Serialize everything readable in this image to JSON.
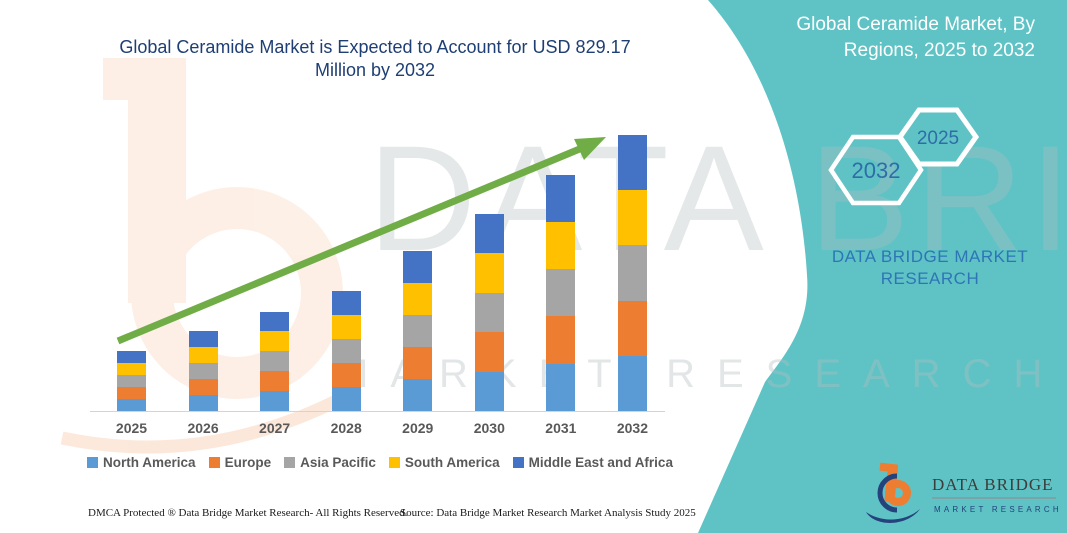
{
  "band": {
    "title": "Global Ceramide Market, By Regions, 2025 to 2032",
    "hexagons": [
      {
        "label": "2032"
      },
      {
        "label": "2025"
      }
    ],
    "brand_text": "DATA BRIDGE MARKET RESEARCH"
  },
  "chart_data": {
    "type": "bar",
    "stacked": true,
    "title": "Global Ceramide Market is Expected to Account for USD 829.17 Million by 2032",
    "xlabel": "",
    "ylabel": "",
    "unit": "USD Million",
    "categories": [
      "2025",
      "2026",
      "2027",
      "2028",
      "2029",
      "2030",
      "2031",
      "2032"
    ],
    "series": [
      {
        "name": "North America",
        "color": "#5B9BD5",
        "values": [
          35.8,
          47.8,
          59.8,
          72.0,
          96.0,
          118.4,
          142.0,
          165.8
        ]
      },
      {
        "name": "Europe",
        "color": "#ED7D31",
        "values": [
          35.8,
          47.8,
          59.8,
          72.0,
          96.0,
          118.4,
          142.0,
          165.8
        ]
      },
      {
        "name": "Asia Pacific",
        "color": "#A5A5A5",
        "values": [
          35.8,
          47.8,
          59.8,
          72.0,
          96.0,
          118.4,
          142.0,
          165.8
        ]
      },
      {
        "name": "South America",
        "color": "#FFC000",
        "values": [
          35.8,
          47.8,
          59.8,
          72.0,
          96.0,
          118.4,
          142.0,
          165.8
        ]
      },
      {
        "name": "Middle East and Africa",
        "color": "#4472C4",
        "values": [
          35.8,
          47.8,
          59.8,
          72.0,
          96.0,
          118.4,
          142.0,
          165.97
        ]
      }
    ],
    "totals": [
      179,
      239,
      299,
      360,
      480,
      592,
      710,
      829.17
    ],
    "ylim": [
      0,
      850
    ],
    "grid": false,
    "legend_position": "bottom",
    "trend_arrow": true,
    "values_are_estimates": true
  },
  "footer": {
    "dmca": "DMCA Protected ® Data Bridge Market Research- All Rights Reserved.",
    "source": "Source: Data Bridge Market Research Market Analysis Study 2025"
  },
  "logo": {
    "title": "DATA BRIDGE",
    "subtitle": "MARKET RESEARCH"
  },
  "watermark": {
    "text_large": "DATA BRIDGE",
    "text_small": "MARKET RESEARCH"
  },
  "colors": {
    "band_teal": "#5FC3C5",
    "title_navy": "#1F3E74",
    "brand_blue": "#2E75B6",
    "arrow_green": "#70AD47",
    "axis_gray": "#D4D4D4",
    "label_gray": "#595959"
  }
}
